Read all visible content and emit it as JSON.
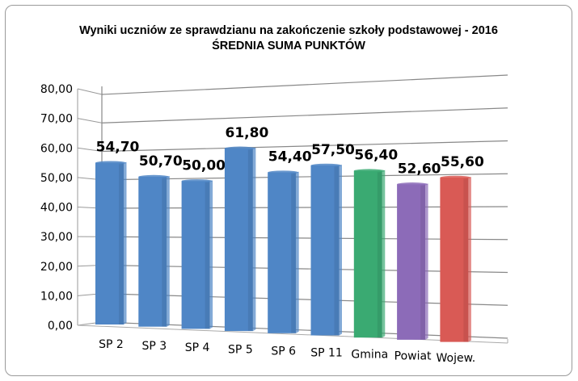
{
  "chart_data": {
    "type": "bar",
    "title": "Wyniki uczniów ze sprawdzianu na zakończenie szkoły podstawowej - 2016",
    "subtitle": "ŚREDNIA SUMA PUNKTÓW",
    "xlabel": "",
    "ylabel": "",
    "ylim": [
      0,
      80
    ],
    "yticks": [
      "0,00",
      "10,00",
      "20,00",
      "30,00",
      "40,00",
      "50,00",
      "60,00",
      "70,00",
      "80,00"
    ],
    "grid": true,
    "legend": "none",
    "categories": [
      "SP 2",
      "SP 3",
      "SP 4",
      "SP 5",
      "SP 6",
      "SP 11",
      "Gmina",
      "Powiat",
      "Wojew."
    ],
    "values": [
      54.7,
      50.7,
      50.0,
      61.8,
      54.4,
      57.5,
      56.4,
      52.6,
      55.6
    ],
    "value_labels": [
      "54,70",
      "50,70",
      "50,00",
      "61,80",
      "54,40",
      "57,50",
      "56,40",
      "52,60",
      "55,60"
    ],
    "colors": [
      "#4f86c6",
      "#4f86c6",
      "#4f86c6",
      "#4f86c6",
      "#4f86c6",
      "#4f86c6",
      "#3aaa72",
      "#8c6bb8",
      "#d95a55"
    ]
  }
}
